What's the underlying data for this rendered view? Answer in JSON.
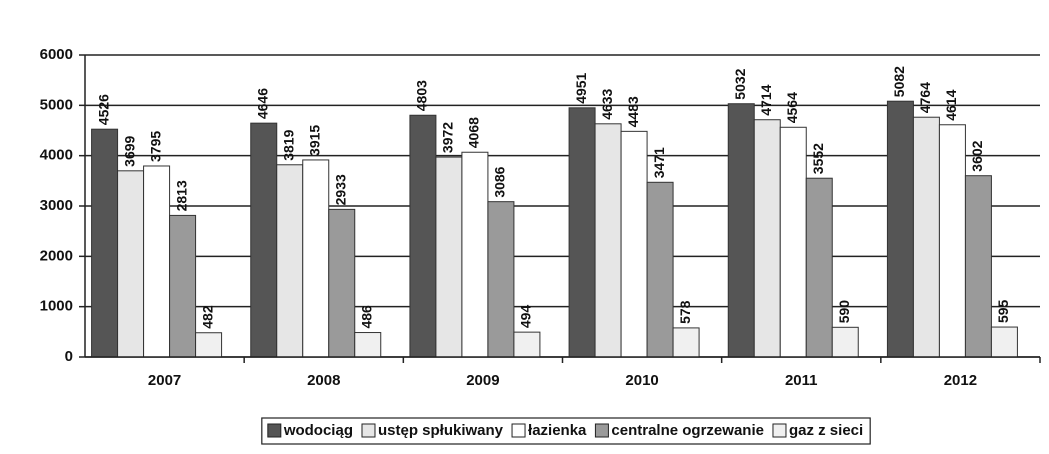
{
  "chart_data": {
    "type": "bar",
    "categories": [
      "2007",
      "2008",
      "2009",
      "2010",
      "2011",
      "2012"
    ],
    "series": [
      {
        "name": "wodociąg",
        "color": "#555555",
        "values": [
          4526,
          4646,
          4803,
          4951,
          5032,
          5082
        ]
      },
      {
        "name": "ustęp spłukiwany",
        "color": "#e6e6e6",
        "values": [
          3699,
          3819,
          3972,
          4633,
          4714,
          4764
        ]
      },
      {
        "name": "łazienka",
        "color": "#ffffff",
        "values": [
          3795,
          3915,
          4068,
          4483,
          4564,
          4614
        ]
      },
      {
        "name": "centralne ogrzewanie",
        "color": "#9a9a9a",
        "values": [
          2813,
          2933,
          3086,
          3471,
          3552,
          3602
        ]
      },
      {
        "name": "gaz z sieci",
        "color": "#f0f0f0",
        "values": [
          482,
          486,
          494,
          578,
          590,
          595
        ]
      }
    ],
    "ylim": [
      0,
      6000
    ],
    "yticks": [
      0,
      1000,
      2000,
      3000,
      4000,
      5000,
      6000
    ],
    "grid": true,
    "legend": "bottom"
  }
}
